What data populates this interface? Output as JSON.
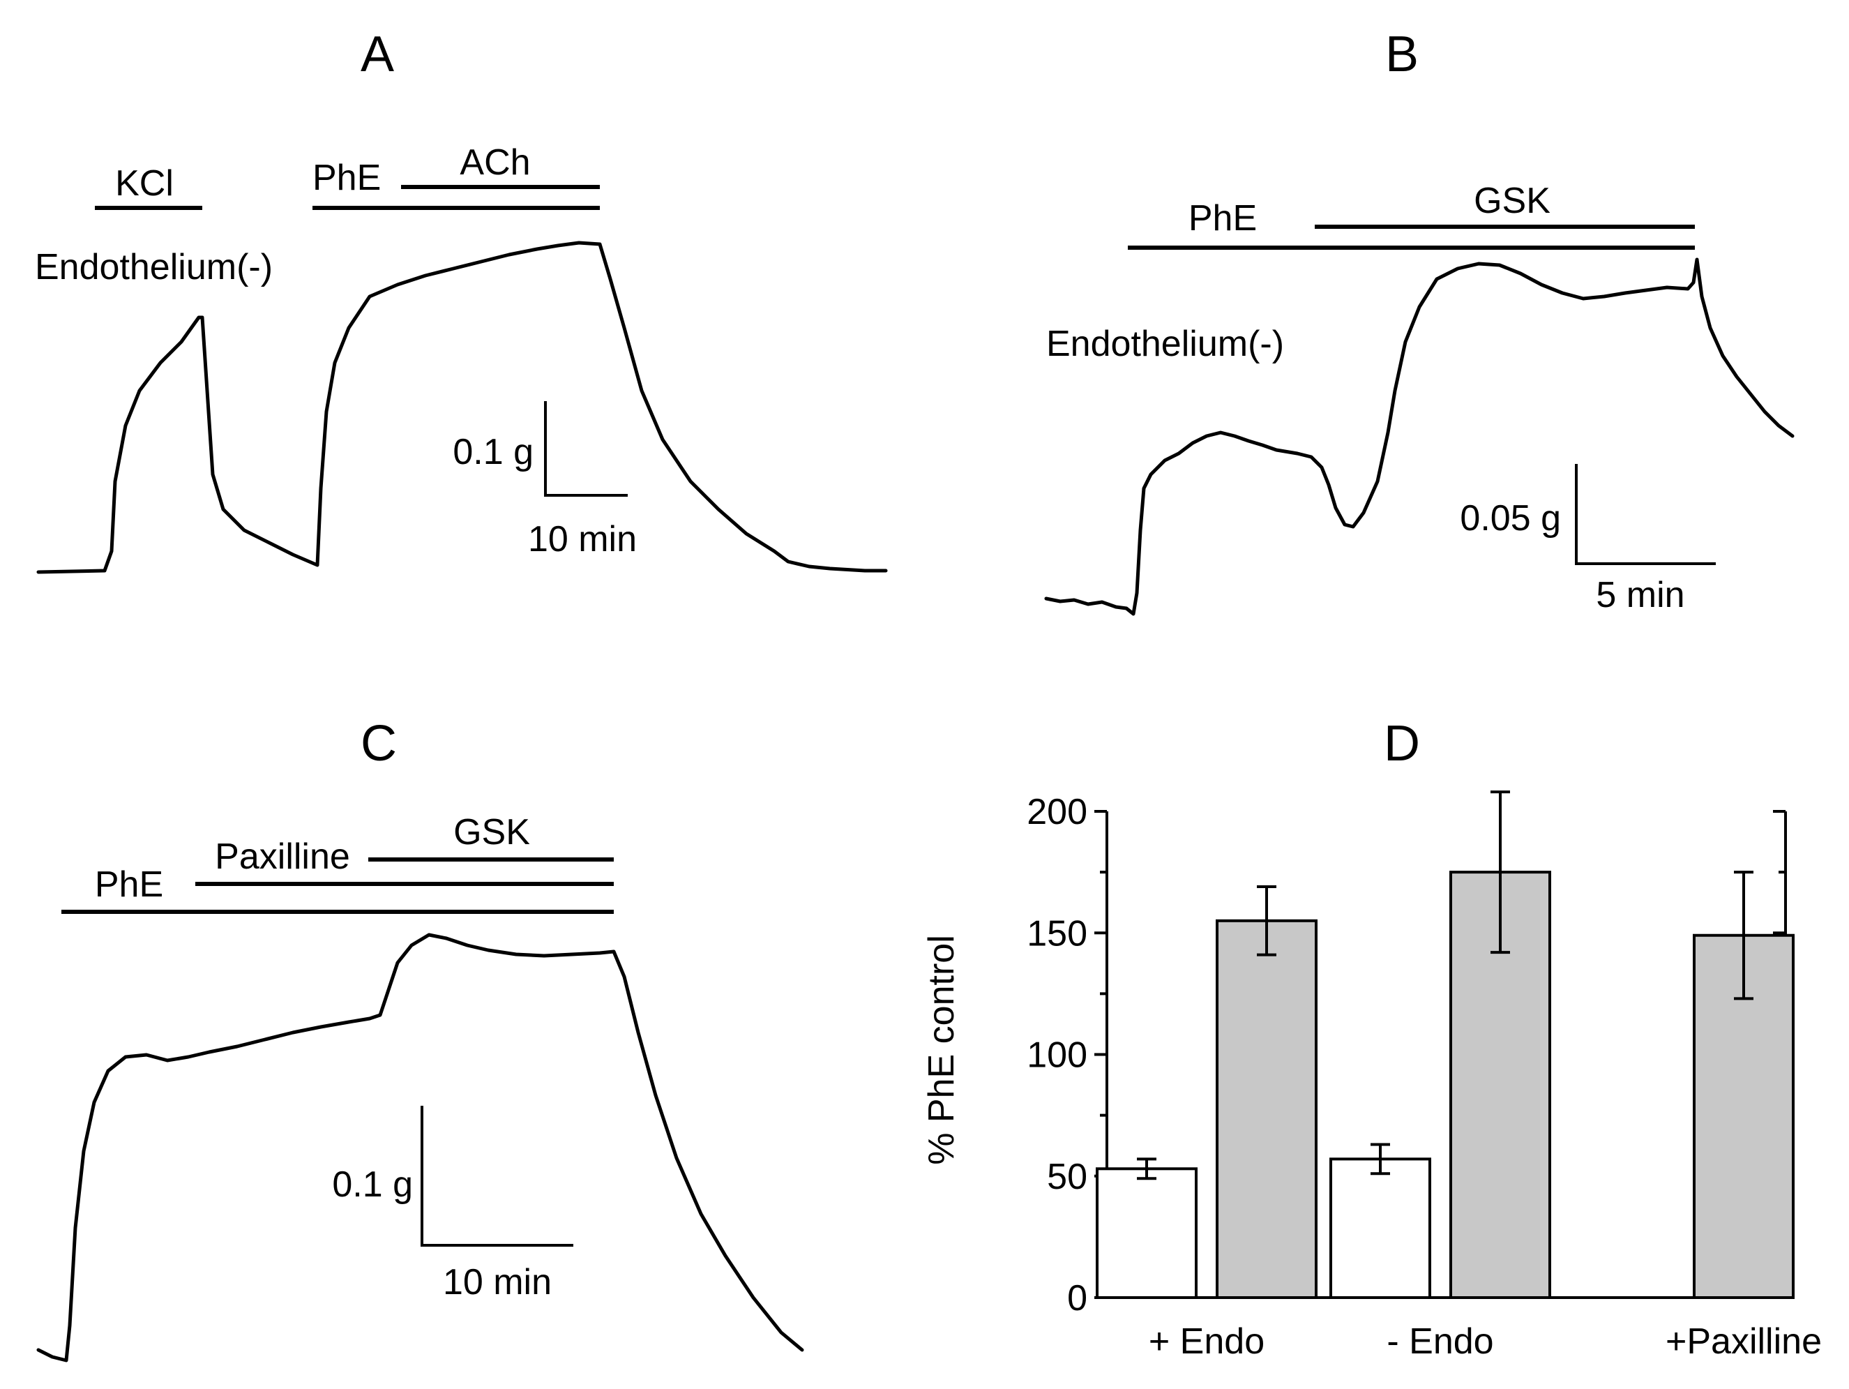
{
  "panels": {
    "A": {
      "label": "A",
      "condition": "Endothelium(-)",
      "drugs": [
        "KCl",
        "PhE",
        "ACh"
      ],
      "scale": {
        "force": "0.1 g",
        "time": "10 min"
      }
    },
    "B": {
      "label": "B",
      "condition": "Endothelium(-)",
      "drugs": [
        "PhE",
        "GSK"
      ],
      "scale": {
        "force": "0.05 g",
        "time": "5 min"
      }
    },
    "C": {
      "label": "C",
      "drugs": [
        "PhE",
        "Paxilline",
        "GSK"
      ],
      "scale": {
        "force": "0.1 g",
        "time": "10 min"
      }
    },
    "D": {
      "label": "D"
    }
  },
  "chart_data": {
    "type": "bar",
    "title": "",
    "xlabel": "",
    "ylabel": "% PhE control",
    "ylim": [
      0,
      200
    ],
    "yticks": [
      0,
      50,
      100,
      150,
      200
    ],
    "categories": [
      "+ Endo",
      "- Endo",
      "+Paxilline"
    ],
    "series": [
      {
        "name": "white",
        "color": "#ffffff",
        "values": [
          53,
          57,
          null
        ],
        "errors": [
          4,
          6,
          null
        ]
      },
      {
        "name": "gray",
        "color": "#c8c8c8",
        "values": [
          155,
          175,
          149
        ],
        "errors": [
          14,
          33,
          26
        ]
      }
    ]
  }
}
